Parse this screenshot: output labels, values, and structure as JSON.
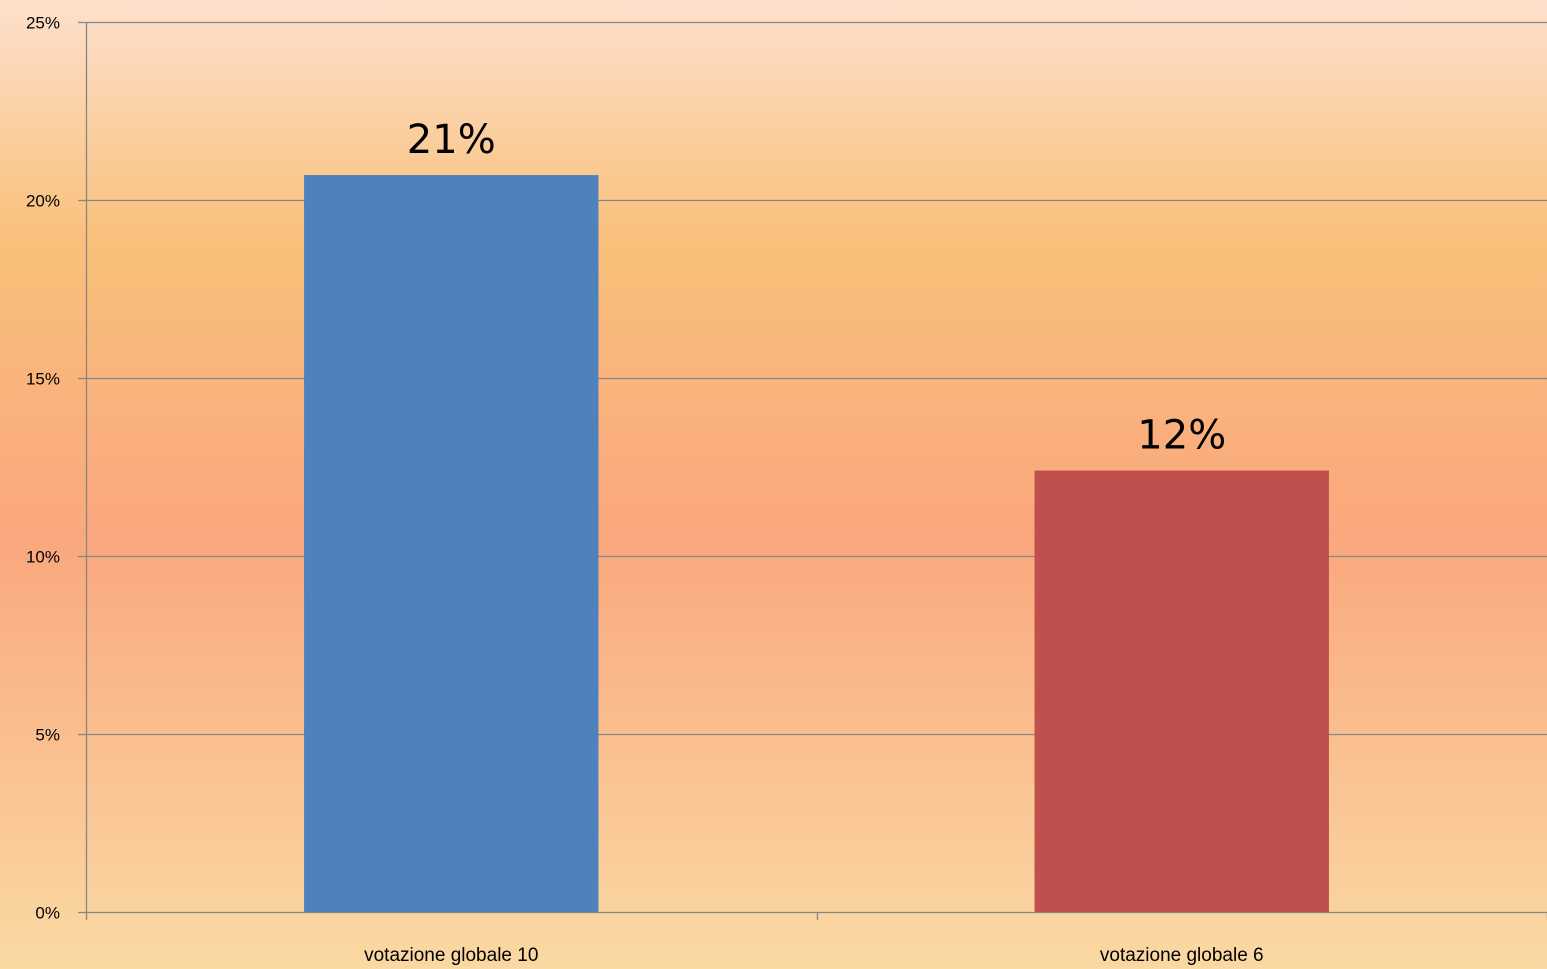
{
  "chart_data": {
    "type": "bar",
    "categories": [
      "votazione globale 10",
      "votazione globale 6"
    ],
    "values": [
      20.7,
      12.4
    ],
    "data_labels": [
      "21%",
      "12%"
    ],
    "bar_colors": [
      "#4F81BD",
      "#C0504D"
    ],
    "ylim": [
      0,
      25
    ],
    "yticks": [
      0,
      5,
      10,
      15,
      20,
      25
    ],
    "ytick_labels": [
      "0%",
      "5%",
      "10%",
      "15%",
      "20%",
      "25%"
    ],
    "grid": true,
    "legend": "none",
    "background_gradient": [
      "#FDE0CC",
      "#F9C07A",
      "#FAA77D",
      "#FAD9A3"
    ],
    "title": "",
    "xlabel": "",
    "ylabel": ""
  }
}
